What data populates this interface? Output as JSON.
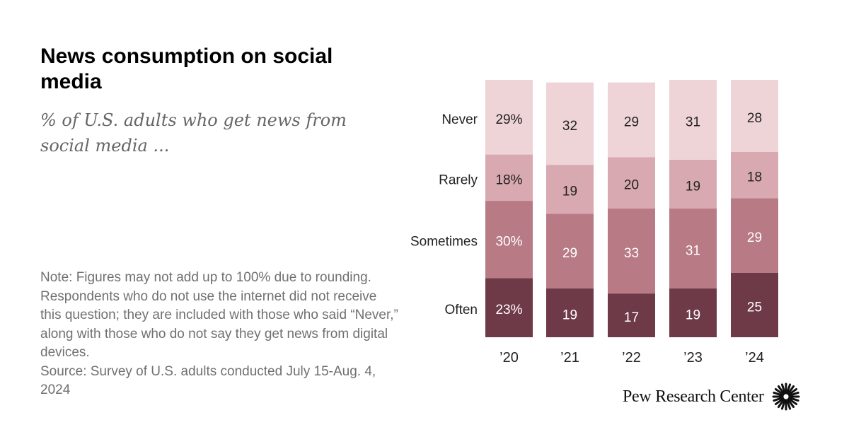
{
  "title": "News consumption on social media",
  "subtitle": "% of U.S. adults who get news from social media ...",
  "notes": {
    "note": "Note: Figures may not add up to 100% due to rounding. Respondents who do not use the internet did not receive this question; they are included with those who said “Never,” along with those who do not say they get news from digital devices.",
    "source": "Source: Survey of U.S. adults conducted July 15-Aug. 4, 2024"
  },
  "brand": "Pew Research Center",
  "chart_data": {
    "type": "bar",
    "stacked": true,
    "categories": [
      "’20",
      "’21",
      "’22",
      "’23",
      "’24"
    ],
    "series": [
      {
        "name": "Often",
        "values": [
          23,
          19,
          17,
          19,
          25
        ],
        "labels": [
          "23%",
          "19",
          "17",
          "19",
          "25"
        ],
        "color": "#6f3a48",
        "label_color": "#ffffff"
      },
      {
        "name": "Sometimes",
        "values": [
          30,
          29,
          33,
          31,
          29
        ],
        "labels": [
          "30%",
          "29",
          "33",
          "31",
          "29"
        ],
        "color": "#b87a85",
        "label_color": "#ffffff"
      },
      {
        "name": "Rarely",
        "values": [
          18,
          19,
          20,
          19,
          18
        ],
        "labels": [
          "18%",
          "19",
          "20",
          "19",
          "18"
        ],
        "color": "#d8a9b0",
        "label_color": "#222222"
      },
      {
        "name": "Never",
        "values": [
          29,
          32,
          29,
          31,
          28
        ],
        "labels": [
          "29%",
          "32",
          "29",
          "31",
          "28"
        ],
        "color": "#eed3d7",
        "label_color": "#222222"
      }
    ]
  }
}
